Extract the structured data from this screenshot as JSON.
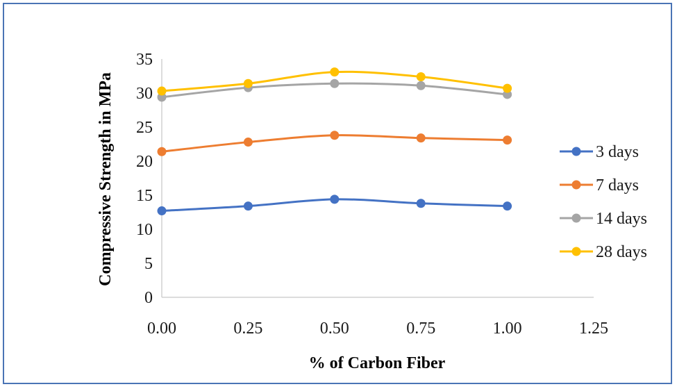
{
  "chart_data": {
    "type": "line",
    "title": "",
    "xlabel": "% of Carbon Fiber",
    "ylabel": "Compressive Strength in MPa",
    "xlim": [
      0,
      1.25
    ],
    "ylim": [
      0,
      35
    ],
    "x_ticks": [
      "0.00",
      "0.25",
      "0.50",
      "0.75",
      "1.00",
      "1.25"
    ],
    "y_ticks": [
      "0",
      "5",
      "10",
      "15",
      "20",
      "25",
      "30",
      "35"
    ],
    "x": [
      0.0,
      0.25,
      0.5,
      0.75,
      1.0
    ],
    "grid": false,
    "legend_position": "right",
    "series": [
      {
        "name": "3 days",
        "color": "#4472c4",
        "values": [
          12.7,
          13.4,
          14.4,
          13.8,
          13.4
        ]
      },
      {
        "name": "7 days",
        "color": "#ed7d31",
        "values": [
          21.4,
          22.8,
          23.8,
          23.4,
          23.1
        ]
      },
      {
        "name": "14 days",
        "color": "#a5a5a5",
        "values": [
          29.4,
          30.8,
          31.4,
          31.1,
          29.8
        ]
      },
      {
        "name": "28 days",
        "color": "#ffc000",
        "values": [
          30.3,
          31.4,
          33.1,
          32.4,
          30.7
        ]
      }
    ]
  }
}
